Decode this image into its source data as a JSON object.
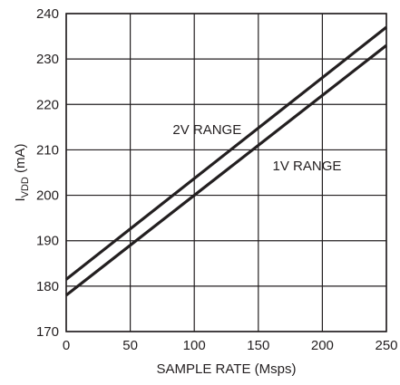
{
  "chart_data": {
    "type": "line",
    "title": "",
    "xlabel": "SAMPLE RATE (Msps)",
    "ylabel": {
      "main": "I",
      "sub": "VDD",
      "unit": " (mA)"
    },
    "xlim": [
      0,
      250
    ],
    "ylim": [
      170,
      240
    ],
    "xticks": [
      0,
      50,
      100,
      150,
      200,
      250
    ],
    "yticks": [
      170,
      180,
      190,
      200,
      210,
      220,
      230,
      240
    ],
    "grid": true,
    "legend": "none",
    "series": [
      {
        "name": "2V RANGE",
        "x": [
          0,
          250
        ],
        "y": [
          181.5,
          237
        ]
      },
      {
        "name": "1V RANGE",
        "x": [
          0,
          250
        ],
        "y": [
          178,
          233
        ]
      }
    ],
    "annotations": [
      {
        "text": "2V RANGE",
        "x": 110,
        "y": 214.5
      },
      {
        "text": "1V RANGE",
        "x": 188,
        "y": 206.5
      }
    ]
  }
}
